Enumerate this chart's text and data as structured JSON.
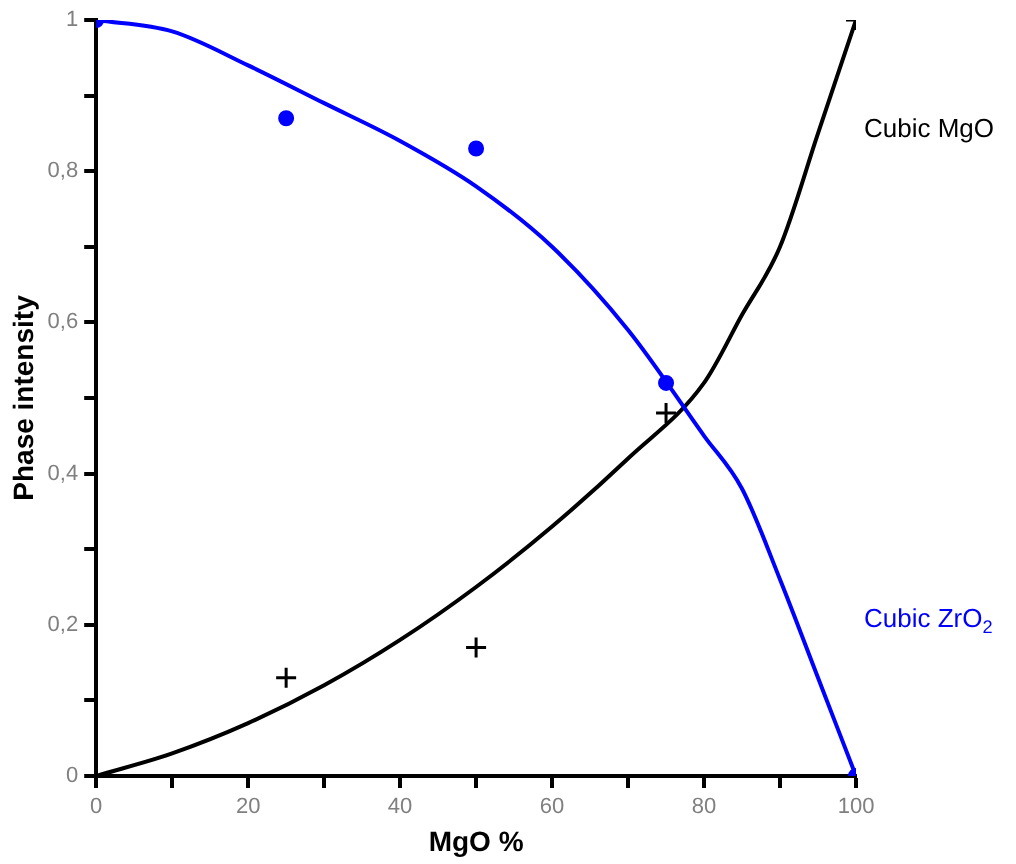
{
  "chart_data": {
    "type": "scatter",
    "xlabel": "MgO %",
    "ylabel": "Phase intensity",
    "xlim": [
      0,
      100
    ],
    "ylim": [
      0,
      1
    ],
    "xticks": [
      0,
      {
        "value": 10,
        "label": null
      },
      20,
      {
        "value": 30,
        "label": null
      },
      40,
      {
        "value": 50,
        "label": null
      },
      60,
      {
        "value": 70,
        "label": null
      },
      80,
      {
        "value": 90,
        "label": null
      },
      100
    ],
    "yticks": [
      {
        "value": 0,
        "label": "0"
      },
      {
        "value": 0.1,
        "label": null
      },
      {
        "value": 0.2,
        "label": "0,2"
      },
      {
        "value": 0.3,
        "label": null
      },
      {
        "value": 0.4,
        "label": "0,4"
      },
      {
        "value": 0.5,
        "label": null
      },
      {
        "value": 0.6,
        "label": "0,6"
      },
      {
        "value": 0.7,
        "label": null
      },
      {
        "value": 0.8,
        "label": "0,8"
      },
      {
        "value": 0.9,
        "label": null
      },
      {
        "value": 1,
        "label": "1"
      }
    ],
    "grid": false,
    "legend": false,
    "series": [
      {
        "type": "scatter",
        "color": "#0000ff",
        "marker": "circle",
        "x": [
          0,
          25,
          50,
          75,
          100
        ],
        "values": [
          1,
          0.87,
          0.83,
          0.52,
          0
        ]
      },
      {
        "type": "scatter",
        "color": "#000000",
        "marker": "cross",
        "x": [
          25,
          50,
          75,
          100
        ],
        "values": [
          0.13,
          0.17,
          0.48,
          1
        ]
      },
      {
        "type": "line",
        "name": "Cubic ZrO$_{2}$",
        "color": "#0000ff",
        "marker": "none",
        "x": [
          0,
          10,
          20,
          30,
          40,
          50,
          60,
          70,
          80,
          85,
          90,
          95,
          100
        ],
        "values": [
          1,
          0.985,
          0.94,
          0.89,
          0.84,
          0.78,
          0.7,
          0.59,
          0.45,
          0.38,
          0.26,
          0.13,
          0
        ]
      },
      {
        "type": "line",
        "name": "Cubic MgO",
        "color": "#000000",
        "marker": "none",
        "x": [
          0,
          10,
          20,
          30,
          40,
          50,
          60,
          70,
          80,
          85,
          90,
          95,
          100
        ],
        "values": [
          0,
          0.03,
          0.07,
          0.12,
          0.18,
          0.25,
          0.33,
          0.42,
          0.52,
          0.61,
          0.7,
          0.85,
          1
        ]
      }
    ]
  }
}
